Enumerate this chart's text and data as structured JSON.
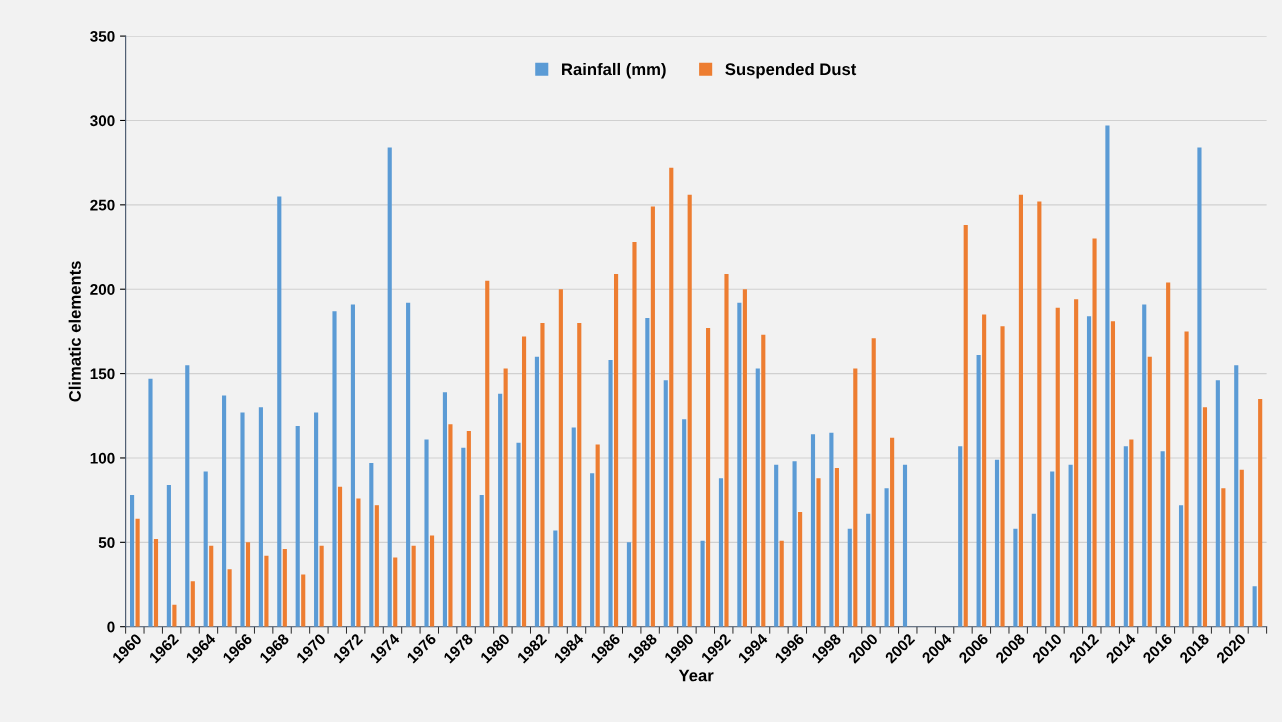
{
  "chart_data": {
    "type": "bar",
    "xlabel": "Year",
    "ylabel": "Climatic elements",
    "categories": [
      "1960",
      null,
      "1962",
      null,
      "1964",
      null,
      "1966",
      null,
      "1968",
      null,
      "1970",
      null,
      "1972",
      null,
      "1974",
      null,
      "1976",
      null,
      "1978",
      null,
      "1980",
      null,
      "1982",
      null,
      "1984",
      null,
      "1986",
      null,
      "1988",
      null,
      "1990",
      null,
      "1992",
      null,
      "1994",
      null,
      "1996",
      null,
      "1998",
      null,
      "2000",
      null,
      "2002",
      null,
      "2004",
      null,
      "2006",
      null,
      "2008",
      null,
      "2010",
      null,
      "2012",
      null,
      "2014",
      null,
      "2016",
      null,
      "2018",
      null,
      "2020",
      null
    ],
    "series": [
      {
        "name": "Rainfall (mm)",
        "color": "#5b9bd5",
        "values": [
          78,
          147,
          84,
          155,
          92,
          137,
          127,
          130,
          255,
          119,
          127,
          187,
          191,
          97,
          284,
          192,
          111,
          139,
          106,
          78,
          138,
          109,
          160,
          57,
          118,
          91,
          158,
          50,
          183,
          146,
          123,
          51,
          88,
          192,
          153,
          96,
          98,
          114,
          115,
          58,
          67,
          82,
          96,
          null,
          null,
          107,
          161,
          99,
          58,
          67,
          92,
          96,
          184,
          297,
          107,
          191,
          104,
          72,
          284,
          146,
          155,
          24
        ]
      },
      {
        "name": "Suspended Dust",
        "color": "#ed7d31",
        "values": [
          64,
          52,
          13,
          27,
          48,
          34,
          50,
          42,
          46,
          31,
          48,
          83,
          76,
          72,
          41,
          48,
          54,
          120,
          116,
          205,
          153,
          172,
          180,
          200,
          180,
          108,
          209,
          228,
          249,
          272,
          256,
          177,
          209,
          200,
          173,
          51,
          68,
          88,
          94,
          153,
          171,
          112,
          null,
          null,
          null,
          238,
          185,
          178,
          256,
          252,
          189,
          194,
          230,
          181,
          111,
          160,
          204,
          175,
          130,
          82,
          93,
          135
        ]
      }
    ],
    "ylim": [
      0,
      350
    ],
    "yticks": [
      0,
      50,
      100,
      150,
      200,
      250,
      300,
      350
    ],
    "grid": "y",
    "legend": "top"
  }
}
